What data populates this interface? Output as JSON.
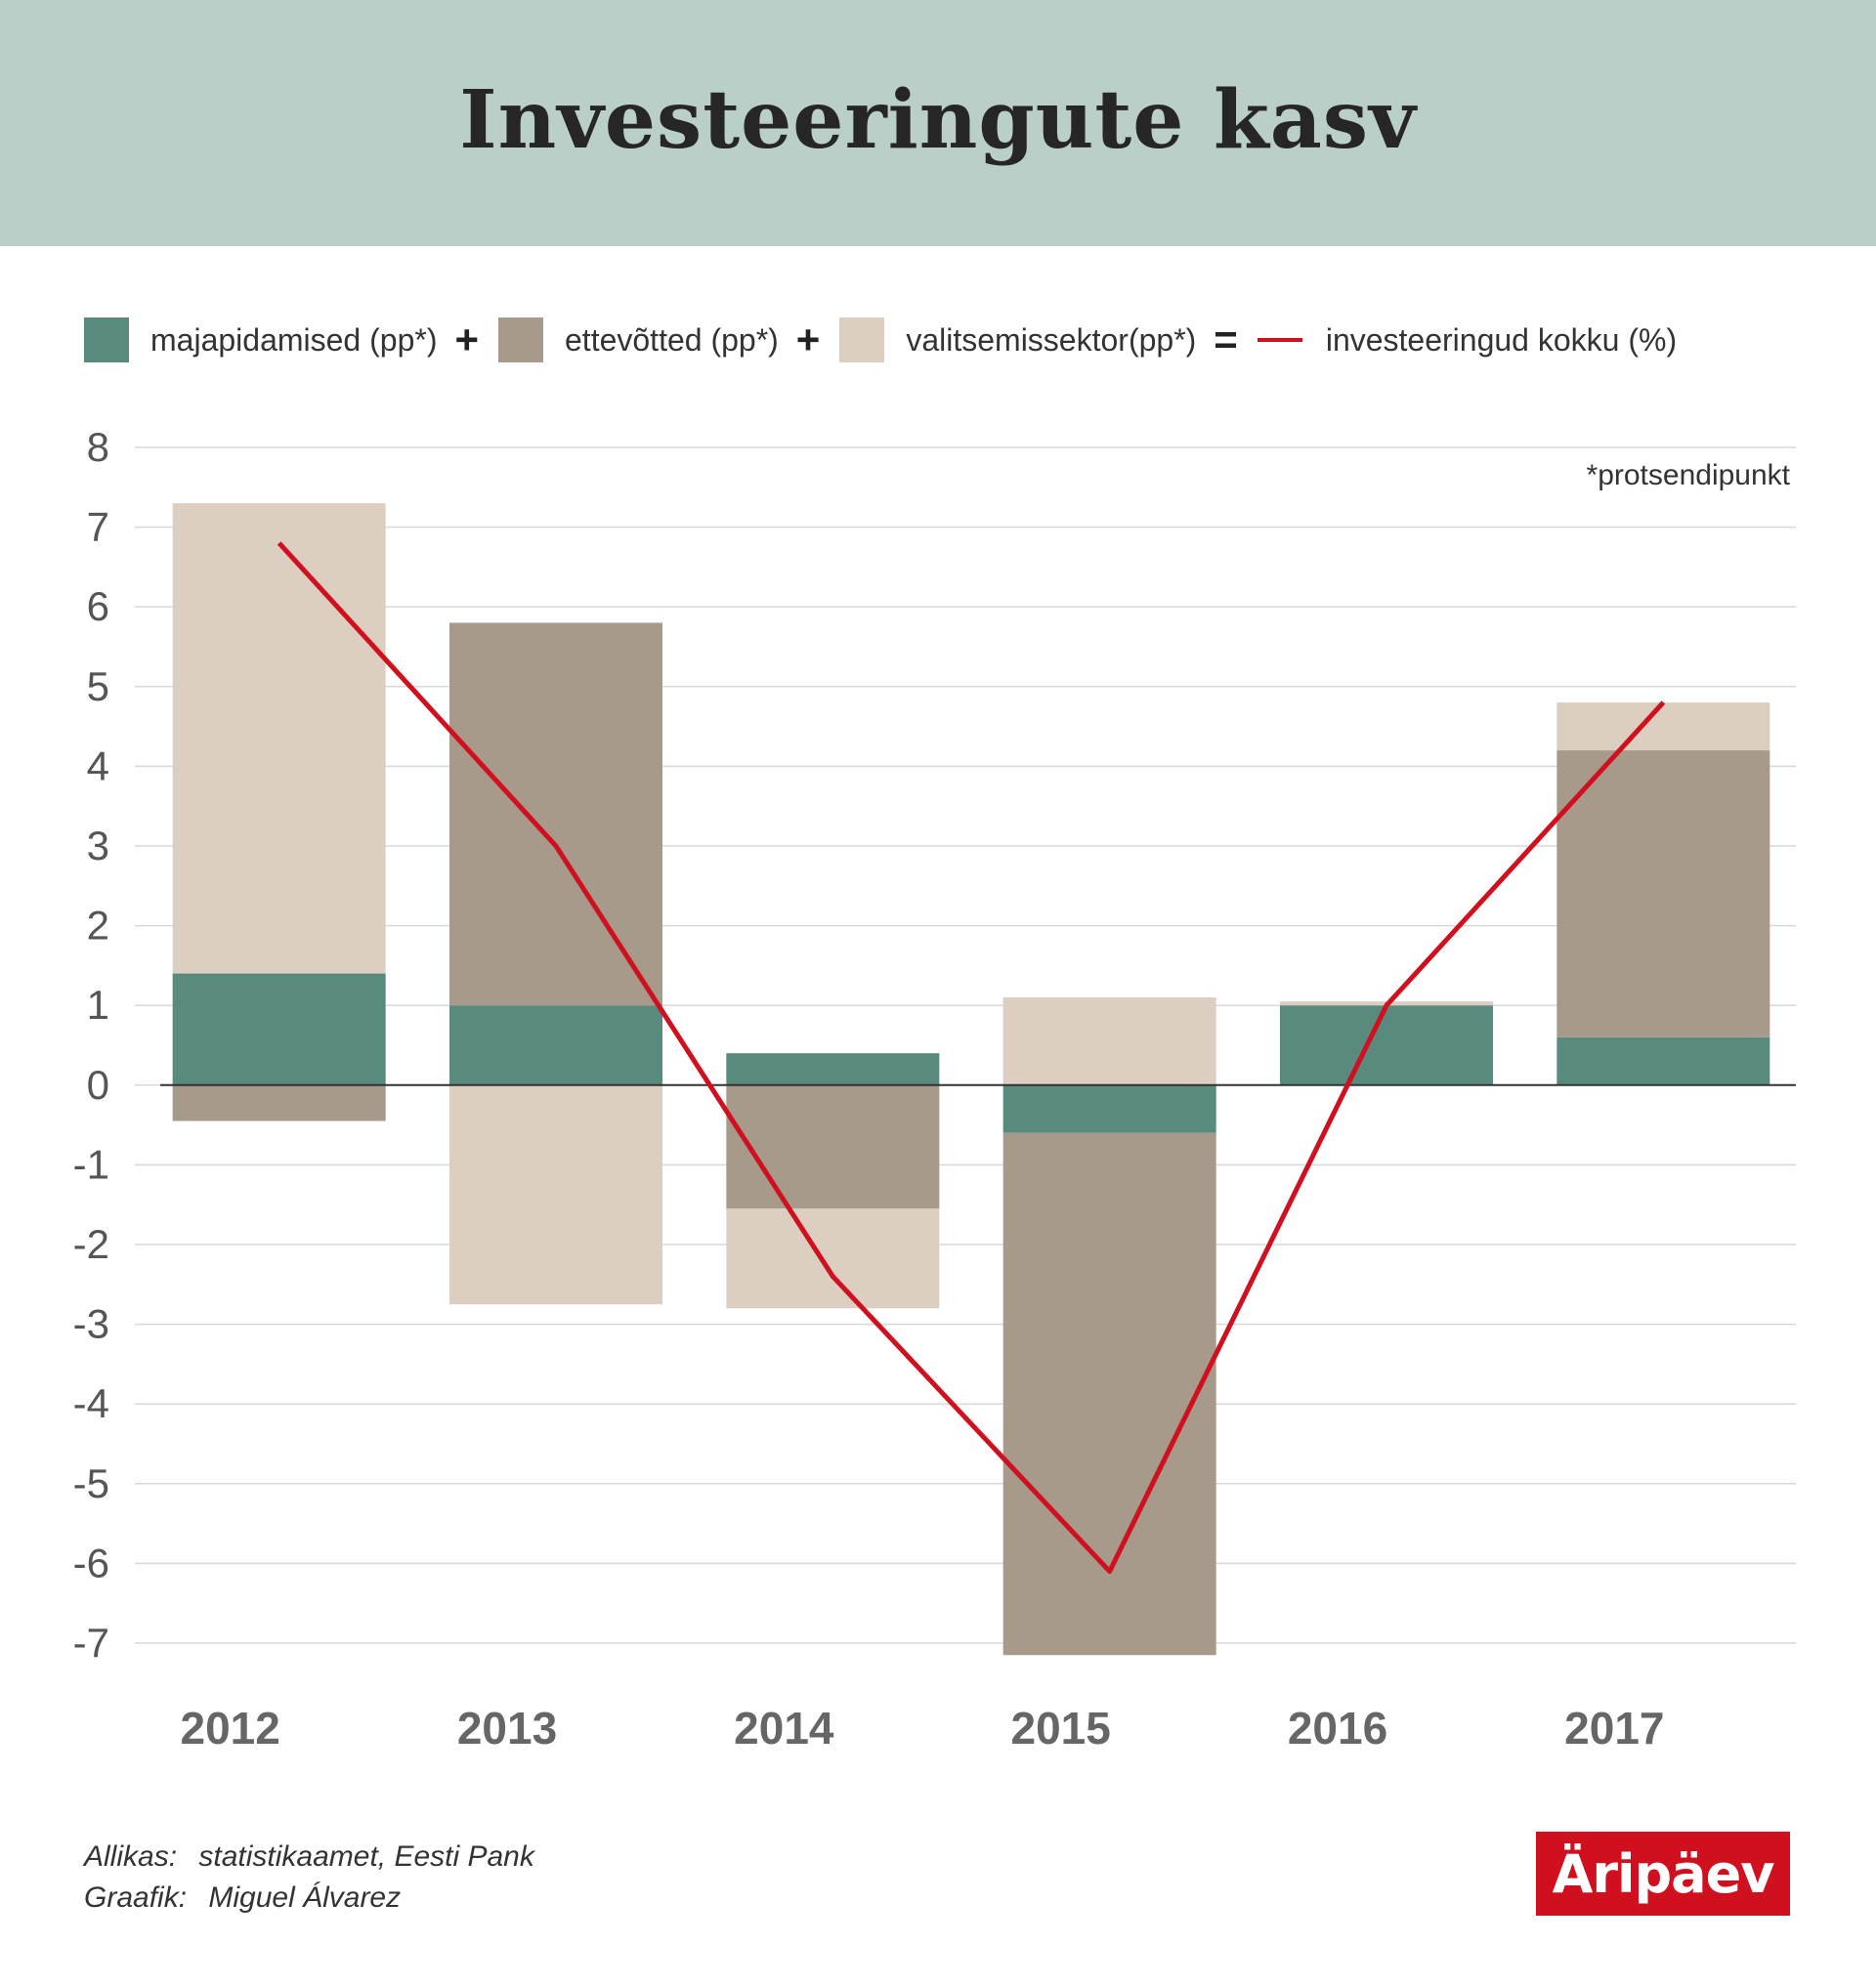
{
  "header": {
    "title": "Investeeringute kasv"
  },
  "legend": {
    "items": [
      {
        "label": "majapidamised (pp*)",
        "color": "#588a7e",
        "kind": "bar"
      },
      {
        "label": "ettevõtted (pp*)",
        "color": "#a79a8a",
        "kind": "bar"
      },
      {
        "label": "valitsemissektor(pp*)",
        "color": "#dccfc1",
        "kind": "bar"
      },
      {
        "label": "investeeringud kokku (%)",
        "color": "#d1101f",
        "kind": "line"
      }
    ],
    "operators": [
      "+",
      "+",
      "="
    ]
  },
  "note": "*protsendipunkt",
  "chart_data": {
    "type": "bar",
    "stacked": true,
    "categories": [
      "2012",
      "2013",
      "2014",
      "2015",
      "2016",
      "2017"
    ],
    "series": [
      {
        "name": "majapidamised (pp*)",
        "color": "#588a7e",
        "values": [
          1.4,
          1.0,
          0.4,
          -0.6,
          1.0,
          0.6
        ]
      },
      {
        "name": "ettevõtted (pp*)",
        "color": "#a79a8a",
        "values": [
          -0.45,
          4.8,
          -1.55,
          -6.55,
          0.0,
          3.6
        ]
      },
      {
        "name": "valitsemissektor(pp*)",
        "color": "#dccfc1",
        "values": [
          5.9,
          -2.75,
          -1.25,
          1.1,
          0.05,
          0.6
        ]
      }
    ],
    "line": {
      "name": "investeeringud kokku (%)",
      "color": "#d1101f",
      "values": [
        6.8,
        3.0,
        -2.4,
        -6.1,
        1.0,
        4.8
      ]
    },
    "ylim": [
      -7,
      8
    ],
    "yticks": [
      8,
      7,
      6,
      5,
      4,
      3,
      2,
      1,
      0,
      -1,
      -2,
      -3,
      -4,
      -5,
      -6,
      -7
    ],
    "grid": true
  },
  "footer": {
    "source_label": "Allikas:",
    "source_value": "statistikaamet, Eesti Pank",
    "author_label": "Graafik:",
    "author_value": "Miguel Álvarez"
  },
  "logo": {
    "text": "Äripäev",
    "color": "#d1101f"
  }
}
